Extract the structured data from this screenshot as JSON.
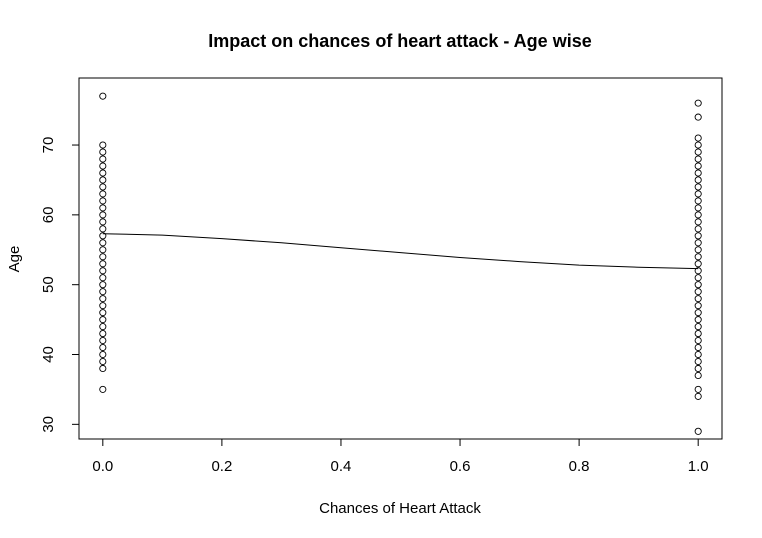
{
  "chart_data": {
    "type": "scatter",
    "title": "Impact on chances of heart attack - Age wise",
    "xlabel": "Chances of Heart Attack",
    "ylabel": "Age",
    "xlim": [
      -0.04,
      1.04
    ],
    "ylim": [
      27.9,
      79.6
    ],
    "x_ticks": [
      0.0,
      0.2,
      0.4,
      0.6,
      0.8,
      1.0
    ],
    "x_tick_labels": [
      "0.0",
      "0.2",
      "0.4",
      "0.6",
      "0.8",
      "1.0"
    ],
    "y_ticks": [
      30,
      40,
      50,
      60,
      70
    ],
    "y_tick_labels": [
      "30",
      "40",
      "50",
      "60",
      "70"
    ],
    "series": [
      {
        "x": 0,
        "y": [
          35,
          38,
          39,
          40,
          41,
          42,
          43,
          44,
          45,
          46,
          47,
          48,
          49,
          50,
          51,
          52,
          53,
          54,
          55,
          56,
          57,
          58,
          59,
          60,
          61,
          62,
          63,
          64,
          65,
          66,
          67,
          68,
          69,
          70,
          77
        ]
      },
      {
        "x": 1,
        "y": [
          29,
          34,
          35,
          37,
          38,
          39,
          40,
          41,
          42,
          43,
          44,
          45,
          46,
          47,
          48,
          49,
          50,
          51,
          52,
          53,
          54,
          55,
          56,
          57,
          58,
          59,
          60,
          61,
          62,
          63,
          64,
          65,
          66,
          67,
          68,
          69,
          70,
          71,
          74,
          76
        ]
      }
    ],
    "trend_line": {
      "x": [
        0.0,
        0.1,
        0.2,
        0.3,
        0.4,
        0.5,
        0.6,
        0.7,
        0.8,
        0.9,
        1.0
      ],
      "y": [
        57.3,
        57.1,
        56.6,
        56.0,
        55.3,
        54.6,
        53.9,
        53.3,
        52.8,
        52.5,
        52.3
      ]
    }
  }
}
